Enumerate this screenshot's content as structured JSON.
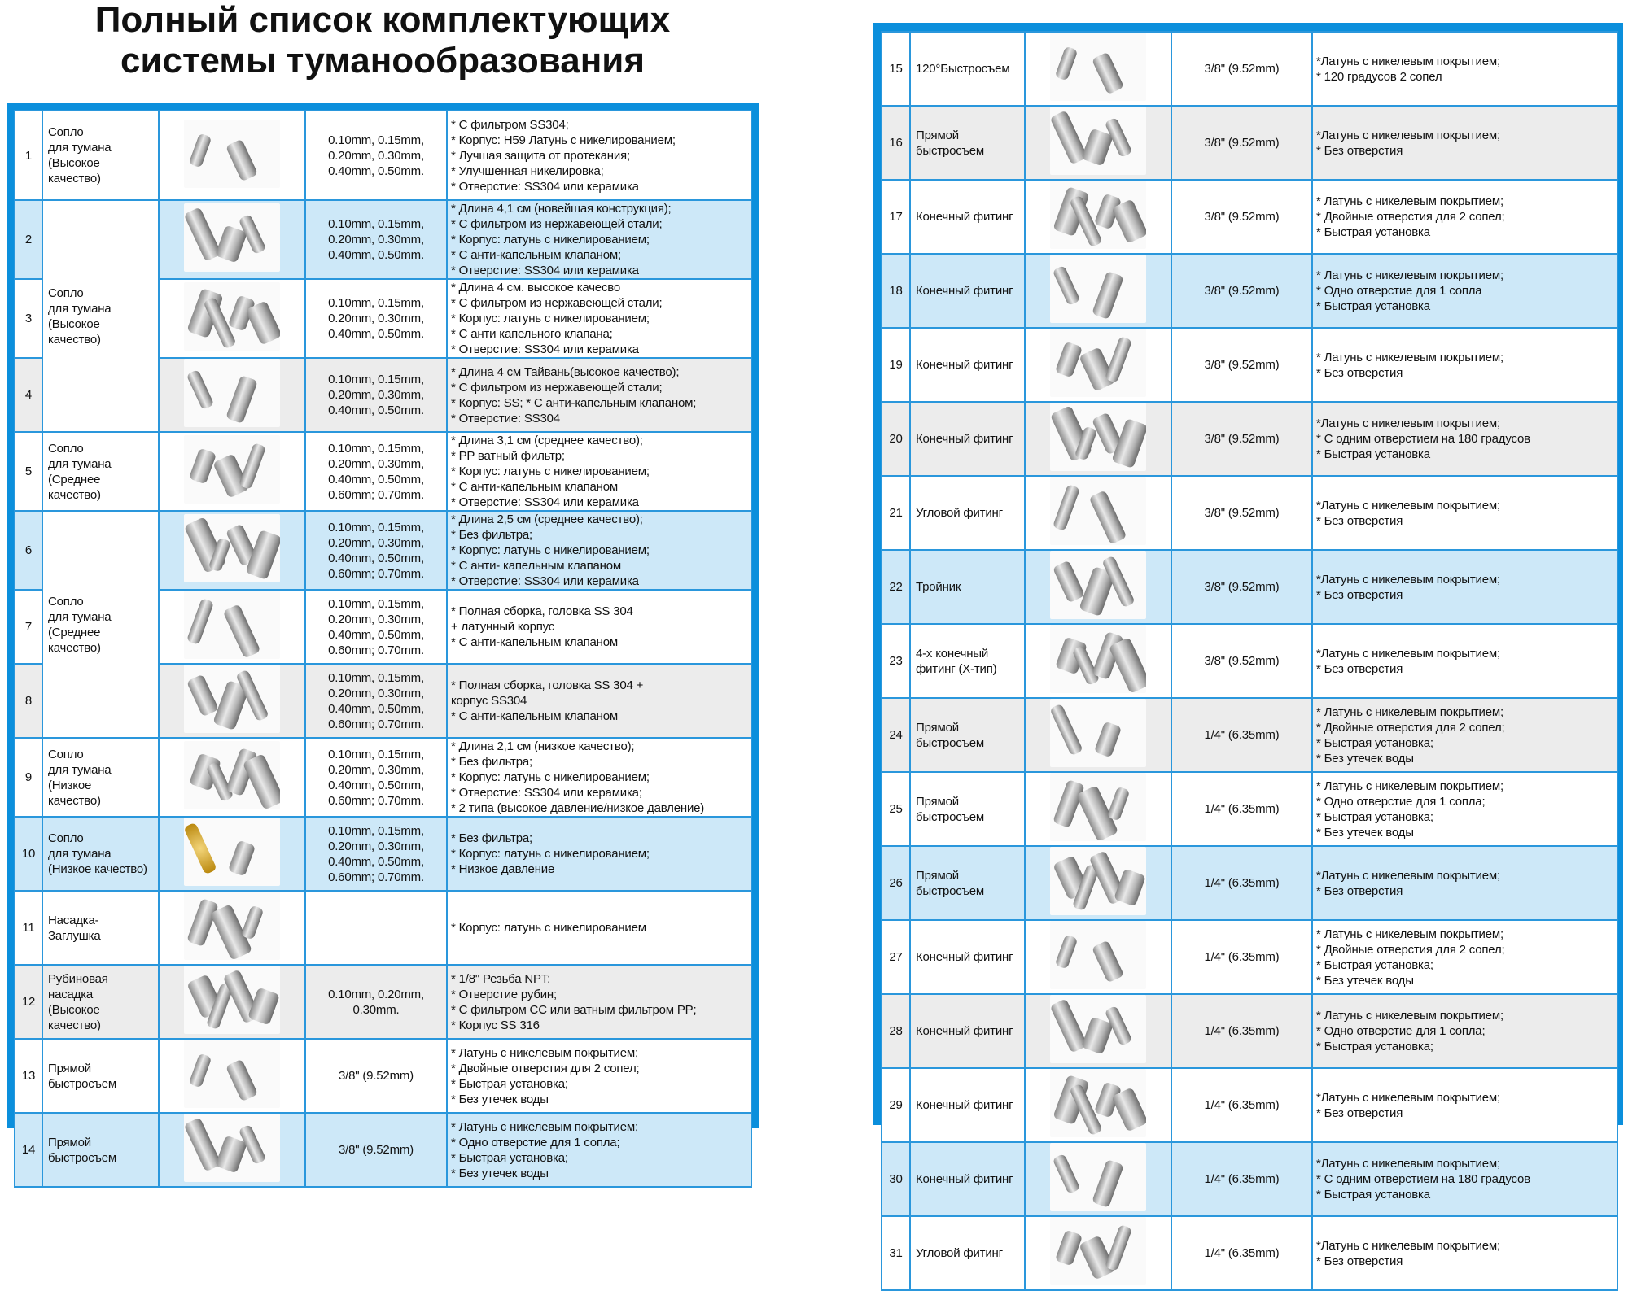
{
  "title": {
    "line1": "Полный список комплектующих",
    "line2": "системы туманообразования"
  },
  "colors": {
    "frame": "#0b8fdc",
    "grid": "#2a97dc",
    "row_blue": "#cde8f8",
    "row_gray": "#ececec"
  },
  "image_icon": "product-photo",
  "left_table": {
    "rows": [
      {
        "num": "1",
        "name": "Сопло\nдля тумана\n(Высокое\nкачество)",
        "name_span": 1,
        "size": "0.10mm, 0.15mm,\n0.20mm, 0.30mm,\n0.40mm, 0.50mm.",
        "desc": "* С фильтром SS304;\n* Корпус: H59 Латунь с никелированием;\n* Лучшая защита от протекания;\n* Улучшенная никелировка;\n* Отверстие: SS304 или керамика",
        "shade": "white"
      },
      {
        "num": "2",
        "name": "Сопло\nдля тумана\n(Высокое\nкачество)",
        "name_span": 3,
        "size": "0.10mm, 0.15mm,\n0.20mm, 0.30mm,\n0.40mm, 0.50mm.",
        "desc": "* Длина 4,1 см (новейшая конструкция);\n* С фильтром из нержавеющей стали;\n* Корпус: латунь с никелированием;\n* С анти-капельным клапаном;\n* Отверстие: SS304 или керамика",
        "shade": "blue"
      },
      {
        "num": "3",
        "size": "0.10mm, 0.15mm,\n0.20mm, 0.30mm,\n0.40mm, 0.50mm.",
        "desc": "* Длина 4 см. высокое качесво\n* С фильтром из нержавеющей стали;\n* Корпус: латунь с никелированием;\n* С анти капельного клапана;\n* Отверстие: SS304 или керамика",
        "shade": "white"
      },
      {
        "num": "4",
        "size": "0.10mm, 0.15mm,\n0.20mm, 0.30mm,\n0.40mm, 0.50mm.",
        "desc": "* Длина 4 см Тайвань(высокое качество);\n* С фильтром из нержавеющей стали;\n* Корпус: SS; * С анти-капельным клапаном;\n* Отверстие: SS304",
        "shade": "gray"
      },
      {
        "num": "5",
        "name": "Сопло\nдля тумана\n(Среднее\nкачество)",
        "name_span": 1,
        "size": "0.10mm, 0.15mm,\n0.20mm, 0.30mm,\n0.40mm, 0.50mm,\n0.60mm; 0.70mm.",
        "desc": "* Длина 3,1 см (среднее качество);\n* PP ватный фильтр;\n* Корпус: латунь с никелированием;\n* С анти-капельным клапаном\n* Отверстие: SS304 или керамика",
        "shade": "white"
      },
      {
        "num": "6",
        "name": "Сопло\nдля тумана\n(Среднее\nкачество)",
        "name_span": 3,
        "size": "0.10mm, 0.15mm,\n0.20mm, 0.30mm,\n0.40mm, 0.50mm,\n0.60mm; 0.70mm.",
        "desc": "* Длина 2,5 см (среднее качество);\n* Без фильтра;\n* Корпус: латунь с никелированием;\n* С анти- капельным клапаном\n* Отверстие: SS304 или керамика",
        "shade": "blue"
      },
      {
        "num": "7",
        "size": "0.10mm, 0.15mm,\n0.20mm, 0.30mm,\n0.40mm, 0.50mm,\n0.60mm; 0.70mm.",
        "desc": "* Полная сборка, головка  SS 304\n + латунный корпус\n* С анти-капельным клапаном",
        "shade": "white"
      },
      {
        "num": "8",
        "size": "0.10mm, 0.15mm,\n0.20mm, 0.30mm,\n0.40mm, 0.50mm,\n0.60mm; 0.70mm.",
        "desc": "* Полная сборка, головка  SS 304 +\n  корпус SS304\n* С анти-капельным клапаном\n ",
        "shade": "gray"
      },
      {
        "num": "9",
        "name": "Сопло\nдля тумана\n(Низкое\nкачество)",
        "name_span": 1,
        "size": "0.10mm, 0.15mm,\n0.20mm, 0.30mm,\n0.40mm, 0.50mm,\n0.60mm; 0.70mm.",
        "desc": "* Длина 2,1 см (низкое качество);\n* Без фильтра;\n* Корпус: латунь с никелированием;\n* Отверстие: SS304 или керамика;\n* 2 типа (высокое давление/низкое давление)",
        "shade": "white"
      },
      {
        "num": "10",
        "name": "Сопло\nдля тумана\n(Низкое качество)",
        "name_span": 1,
        "size": "0.10mm, 0.15mm,\n0.20mm, 0.30mm,\n0.40mm, 0.50mm,\n0.60mm; 0.70mm.",
        "desc": "* Без фильтра;\n* Корпус: латунь с никелированием;\n* Низкое давление",
        "shade": "blue"
      },
      {
        "num": "11",
        "name": "Насадка-\nЗаглушка",
        "name_span": 1,
        "size": "",
        "desc": "* Корпус: латунь с никелированием",
        "shade": "white"
      },
      {
        "num": "12",
        "name": "Рубиновая\nнасадка\n(Высокое\nкачество)",
        "name_span": 1,
        "size": "0.10mm, 0.20mm,\n0.30mm.",
        "desc": "* 1/8\" Резьба NPT;\n* Отверстие рубин;\n* С фильтром CC или ватным фильтром PP;\n* Корпус SS 316",
        "shade": "gray"
      },
      {
        "num": "13",
        "name": "Прямой\nбыстросъем",
        "name_span": 1,
        "size": "3/8\" (9.52mm)",
        "desc": "* Латунь с никелевым покрытием;\n* Двойные отверстия для 2 сопел;\n* Быстрая установка;\n* Без утечек воды",
        "shade": "white"
      },
      {
        "num": "14",
        "name": "Прямой\nбыстросъем",
        "name_span": 1,
        "size": "3/8\" (9.52mm)",
        "desc": "* Латунь с никелевым покрытием;\n* Одно отверстие для 1 сопла;\n* Быстрая установка;\n* Без утечек воды",
        "shade": "blue"
      }
    ]
  },
  "right_table": {
    "rows": [
      {
        "num": "15",
        "name": "120°Быстросъем",
        "name_span": 1,
        "size": "3/8\" (9.52mm)",
        "desc": "*Латунь с никелевым покрытием;\n* 120 градусов 2 сопел",
        "shade": "white"
      },
      {
        "num": "16",
        "name": "Прямой\nбыстросъем",
        "name_span": 1,
        "size": "3/8\" (9.52mm)",
        "desc": "*Латунь с никелевым покрытием;\n* Без отверстия",
        "shade": "gray"
      },
      {
        "num": "17",
        "name": "Конечный фитинг",
        "name_span": 1,
        "size": "3/8\" (9.52mm)",
        "desc": "* Латунь с никелевым покрытием;\n* Двойные отверстия для 2 сопел;\n* Быстрая установка",
        "shade": "white"
      },
      {
        "num": "18",
        "name": "Конечный фитинг",
        "name_span": 1,
        "size": "3/8\" (9.52mm)",
        "desc": "* Латунь с никелевым покрытием;\n* Одно отверстие для 1 сопла\n* Быстрая установка",
        "shade": "blue"
      },
      {
        "num": "19",
        "name": "Конечный фитинг",
        "name_span": 1,
        "size": "3/8\" (9.52mm)",
        "desc": "* Латунь с никелевым покрытием;\n* Без отверстия",
        "shade": "white"
      },
      {
        "num": "20",
        "name": "Конечный фитинг",
        "name_span": 1,
        "size": "3/8\" (9.52mm)",
        "desc": "*Латунь с никелевым покрытием;\n* С одним отверстием на 180 градусов\n* Быстрая установка",
        "shade": "gray"
      },
      {
        "num": "21",
        "name": "Угловой фитинг",
        "name_span": 1,
        "size": "3/8\" (9.52mm)",
        "desc": "*Латунь с никелевым покрытием;\n* Без отверстия",
        "shade": "white"
      },
      {
        "num": "22",
        "name": "Тройник",
        "name_span": 1,
        "size": "3/8\" (9.52mm)",
        "desc": "*Латунь с никелевым покрытием;\n* Без отверстия",
        "shade": "blue"
      },
      {
        "num": "23",
        "name": "4-х конечный\nфитинг (X-тип)",
        "name_span": 1,
        "size": "3/8\" (9.52mm)",
        "desc": "*Латунь с никелевым покрытием;\n* Без отверстия",
        "shade": "white"
      },
      {
        "num": "24",
        "name": "Прямой\nбыстросъем",
        "name_span": 1,
        "size": "1/4\" (6.35mm)",
        "desc": "* Латунь с никелевым покрытием;\n* Двойные отверстия для 2 сопел;\n* Быстрая установка;\n* Без утечек воды",
        "shade": "gray"
      },
      {
        "num": "25",
        "name": "Прямой\nбыстросъем",
        "name_span": 1,
        "size": "1/4\" (6.35mm)",
        "desc": "* Латунь с никелевым покрытием;\n* Одно отверстие для 1 сопла;\n* Быстрая установка;\n* Без утечек воды",
        "shade": "white"
      },
      {
        "num": "26",
        "name": "Прямой\nбыстросъем",
        "name_span": 1,
        "size": "1/4\" (6.35mm)",
        "desc": "*Латунь с никелевым покрытием;\n* Без отверстия",
        "shade": "blue"
      },
      {
        "num": "27",
        "name": "Конечный фитинг",
        "name_span": 1,
        "size": "1/4\" (6.35mm)",
        "desc": "* Латунь с никелевым покрытием;\n* Двойные отверстия для 2 сопел;\n* Быстрая установка;\n* Без утечек воды",
        "shade": "white"
      },
      {
        "num": "28",
        "name": "Конечный фитинг",
        "name_span": 1,
        "size": "1/4\" (6.35mm)",
        "desc": "* Латунь с никелевым покрытием;\n* Одно отверстие для 1 сопла;\n* Быстрая установка;",
        "shade": "gray"
      },
      {
        "num": "29",
        "name": "Конечный фитинг",
        "name_span": 1,
        "size": "1/4\" (6.35mm)",
        "desc": "*Латунь с никелевым покрытием;\n* Без отверстия",
        "shade": "white"
      },
      {
        "num": "30",
        "name": "Конечный фитинг",
        "name_span": 1,
        "size": "1/4\" (6.35mm)",
        "desc": "*Латунь с никелевым покрытием;\n* С одним отверстием на 180 градусов\n* Быстрая установка",
        "shade": "blue"
      },
      {
        "num": "31",
        "name": "Угловой фитинг",
        "name_span": 1,
        "size": "1/4\" (6.35mm)",
        "desc": "*Латунь с никелевым покрытием;\n* Без отверстия",
        "shade": "white"
      }
    ]
  }
}
